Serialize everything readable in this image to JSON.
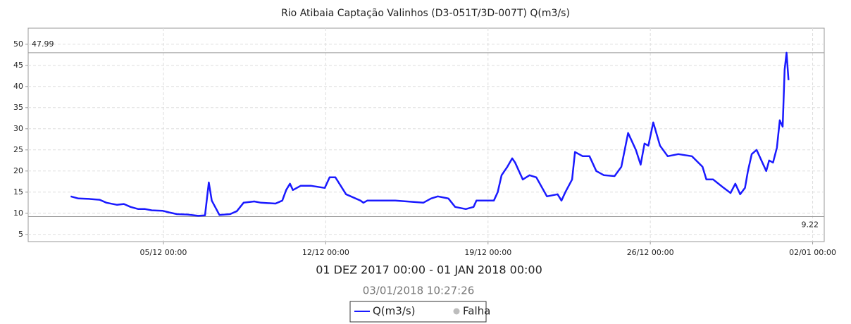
{
  "chart_data": {
    "type": "line",
    "title": "Rio Atibaia Captação Valinhos (D3-051T/3D-007T) Q(m3/s)",
    "subtitle": "01 DEZ 2017 00:00 - 01 JAN 2018 00:00",
    "timestamp": "03/01/2018 10:27:26",
    "x": [
      "2017-12-01 00:00",
      "2017-12-01 08:00",
      "2017-12-01 19:00",
      "2017-12-02 06:00",
      "2017-12-02 13:00",
      "2017-12-03 00:00",
      "2017-12-03 07:00",
      "2017-12-03 14:00",
      "2017-12-03 22:00",
      "2017-12-04 05:00",
      "2017-12-04 12:00",
      "2017-12-04 23:00",
      "2017-12-05 06:00",
      "2017-12-05 14:00",
      "2017-12-06 01:00",
      "2017-12-06 12:00",
      "2017-12-06 19:00",
      "2017-12-06 23:00",
      "2017-12-07 02:00",
      "2017-12-07 10:00",
      "2017-12-07 21:00",
      "2017-12-08 04:00",
      "2017-12-08 11:00",
      "2017-12-08 22:00",
      "2017-12-09 05:00",
      "2017-12-09 20:00",
      "2017-12-10 03:00",
      "2017-12-10 07:00",
      "2017-12-10 11:00",
      "2017-12-10 14:00",
      "2017-12-10 22:00",
      "2017-12-11 09:00",
      "2017-12-11 23:00",
      "2017-12-12 04:00",
      "2017-12-12 10:00",
      "2017-12-12 21:00",
      "2017-12-13 12:00",
      "2017-12-13 15:00",
      "2017-12-13 19:00",
      "2017-12-15 00:00",
      "2017-12-16 05:00",
      "2017-12-16 13:00",
      "2017-12-16 20:00",
      "2017-12-17 07:00",
      "2017-12-17 14:00",
      "2017-12-18 01:00",
      "2017-12-18 09:00",
      "2017-12-18 12:00",
      "2017-12-19 06:00",
      "2017-12-19 10:00",
      "2017-12-19 14:00",
      "2017-12-19 20:00",
      "2017-12-20 01:00",
      "2017-12-20 04:00",
      "2017-12-20 12:00",
      "2017-12-20 19:00",
      "2017-12-21 02:00",
      "2017-12-21 13:00",
      "2017-12-22 00:00",
      "2017-12-22 04:00",
      "2017-12-22 08:00",
      "2017-12-22 15:00",
      "2017-12-22 18:00",
      "2017-12-23 02:00",
      "2017-12-23 09:00",
      "2017-12-23 16:00",
      "2017-12-24 00:00",
      "2017-12-24 11:00",
      "2017-12-24 18:00",
      "2017-12-25 01:00",
      "2017-12-25 09:00",
      "2017-12-25 14:00",
      "2017-12-25 18:00",
      "2017-12-25 22:00",
      "2017-12-26 03:00",
      "2017-12-26 10:00",
      "2017-12-26 18:00",
      "2017-12-27 05:00",
      "2017-12-27 19:00",
      "2017-12-28 06:00",
      "2017-12-28 10:00",
      "2017-12-28 17:00",
      "2017-12-29 04:00",
      "2017-12-29 11:00",
      "2017-12-29 16:00",
      "2017-12-29 21:00",
      "2017-12-30 02:00",
      "2017-12-30 05:00",
      "2017-12-30 09:00",
      "2017-12-30 14:00",
      "2017-12-30 20:00",
      "2017-12-31 00:00",
      "2017-12-31 03:00",
      "2017-12-31 07:00",
      "2017-12-31 11:00",
      "2017-12-31 14:00",
      "2017-12-31 17:00",
      "2017-12-31 19:00",
      "2017-12-31 21:00",
      "2017-12-31 23:00"
    ],
    "series": [
      {
        "name": "Q(m3/s)",
        "color": "#1a1aff",
        "values": [
          14,
          13.5,
          13.4,
          13.2,
          12.5,
          12,
          12.2,
          11.5,
          11,
          11,
          10.7,
          10.6,
          10.2,
          9.8,
          9.7,
          9.4,
          9.5,
          17.3,
          13,
          9.6,
          9.8,
          10.5,
          12.5,
          12.8,
          12.5,
          12.3,
          13,
          15.5,
          17,
          15.5,
          16.5,
          16.5,
          16,
          18.5,
          18.5,
          14.5,
          13,
          12.5,
          13,
          13,
          12.5,
          13.5,
          14,
          13.5,
          11.5,
          11,
          11.5,
          13,
          13,
          15,
          19,
          21,
          23,
          22,
          18,
          19,
          18.5,
          14,
          14.5,
          13,
          15,
          18,
          24.5,
          23.5,
          23.5,
          20,
          19,
          18.8,
          21,
          29,
          25,
          21.5,
          26.5,
          26,
          31.5,
          26,
          23.5,
          24,
          23.5,
          21,
          18,
          18,
          16,
          14.8,
          17,
          14.5,
          16,
          20,
          24,
          25,
          22,
          20,
          22.5,
          22,
          25.5,
          32,
          30.5,
          44,
          47.99,
          41.5
        ]
      }
    ],
    "status_legend": {
      "label": "Falha",
      "color": "#bdbdbd"
    },
    "reference_lines": [
      47.99,
      9.22
    ],
    "xlim": [
      "2017-11-29 04:00",
      "2018-01-02 12:00"
    ],
    "xticks": [
      {
        "value": "2017-12-05 00:00",
        "label": "05/12 00:00"
      },
      {
        "value": "2017-12-12 00:00",
        "label": "12/12 00:00"
      },
      {
        "value": "2017-12-19 00:00",
        "label": "19/12 00:00"
      },
      {
        "value": "2017-12-26 00:00",
        "label": "26/12 00:00"
      },
      {
        "value": "2018-01-02 00:00",
        "label": "02/01 00:00"
      }
    ],
    "ylim": [
      3.3,
      53.8
    ],
    "yticks": [
      5,
      10,
      15,
      20,
      25,
      30,
      35,
      40,
      45,
      50
    ],
    "grid": true
  }
}
